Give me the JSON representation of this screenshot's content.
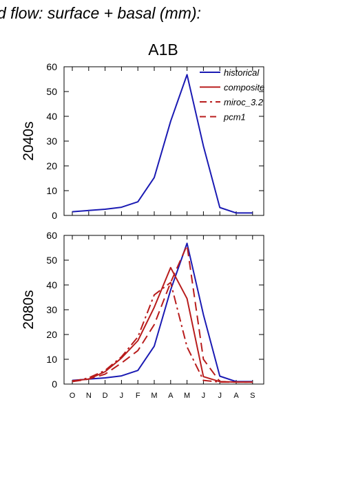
{
  "header": {
    "suptitle": "d flow: surface + basal (mm):",
    "panel_title": "A1B"
  },
  "colors": {
    "historical": "#1a1ab3",
    "scenario": "#b81c1c"
  },
  "chart_data": [
    {
      "type": "line",
      "title": "A1B",
      "ylabel": "2040s",
      "categories": [
        "O",
        "N",
        "D",
        "J",
        "F",
        "M",
        "A",
        "M",
        "J",
        "J",
        "A",
        "S"
      ],
      "ylim": [
        0,
        60
      ],
      "yticks": [
        0,
        10,
        20,
        30,
        40,
        50,
        60
      ],
      "legend": {
        "placement": "top-right",
        "entries": [
          {
            "name": "historical",
            "style": "solid",
            "color": "#1a1ab3"
          },
          {
            "name": "composite",
            "style": "solid",
            "color": "#b81c1c"
          },
          {
            "name": "miroc_3.2",
            "style": "dashdot",
            "color": "#b81c1c"
          },
          {
            "name": "pcm1",
            "style": "dashed",
            "color": "#b81c1c"
          }
        ]
      },
      "series": [
        {
          "name": "historical",
          "style": "solid",
          "color": "#1a1ab3",
          "values": [
            1.5,
            2.0,
            2.5,
            3.3,
            5.5,
            15.3,
            38.0,
            56.8,
            28.0,
            3.2,
            1.0,
            1.0
          ]
        }
      ]
    },
    {
      "type": "line",
      "ylabel": "2080s",
      "categories": [
        "O",
        "N",
        "D",
        "J",
        "F",
        "M",
        "A",
        "M",
        "J",
        "J",
        "A",
        "S"
      ],
      "ylim": [
        0,
        60
      ],
      "yticks": [
        0,
        10,
        20,
        30,
        40,
        50,
        60
      ],
      "series": [
        {
          "name": "historical",
          "style": "solid",
          "color": "#1a1ab3",
          "values": [
            1.5,
            2.0,
            2.5,
            3.3,
            5.5,
            15.3,
            38.0,
            56.8,
            28.0,
            3.2,
            1.0,
            1.0
          ]
        },
        {
          "name": "composite",
          "style": "solid",
          "color": "#b81c1c",
          "values": [
            1.3,
            2.0,
            5.0,
            10.5,
            17.5,
            31.0,
            47.0,
            34.5,
            3.0,
            1.0,
            0.8,
            0.8
          ]
        },
        {
          "name": "miroc_3.2",
          "style": "dashdot",
          "color": "#b81c1c",
          "values": [
            1.0,
            2.5,
            5.5,
            11.0,
            19.0,
            36.0,
            41.0,
            15.0,
            1.5,
            0.8,
            0.8,
            0.8
          ]
        },
        {
          "name": "pcm1",
          "style": "dashed",
          "color": "#b81c1c",
          "values": [
            1.0,
            2.0,
            4.0,
            8.5,
            13.5,
            24.0,
            41.0,
            56.0,
            10.0,
            1.0,
            0.8,
            0.8
          ]
        }
      ]
    }
  ]
}
